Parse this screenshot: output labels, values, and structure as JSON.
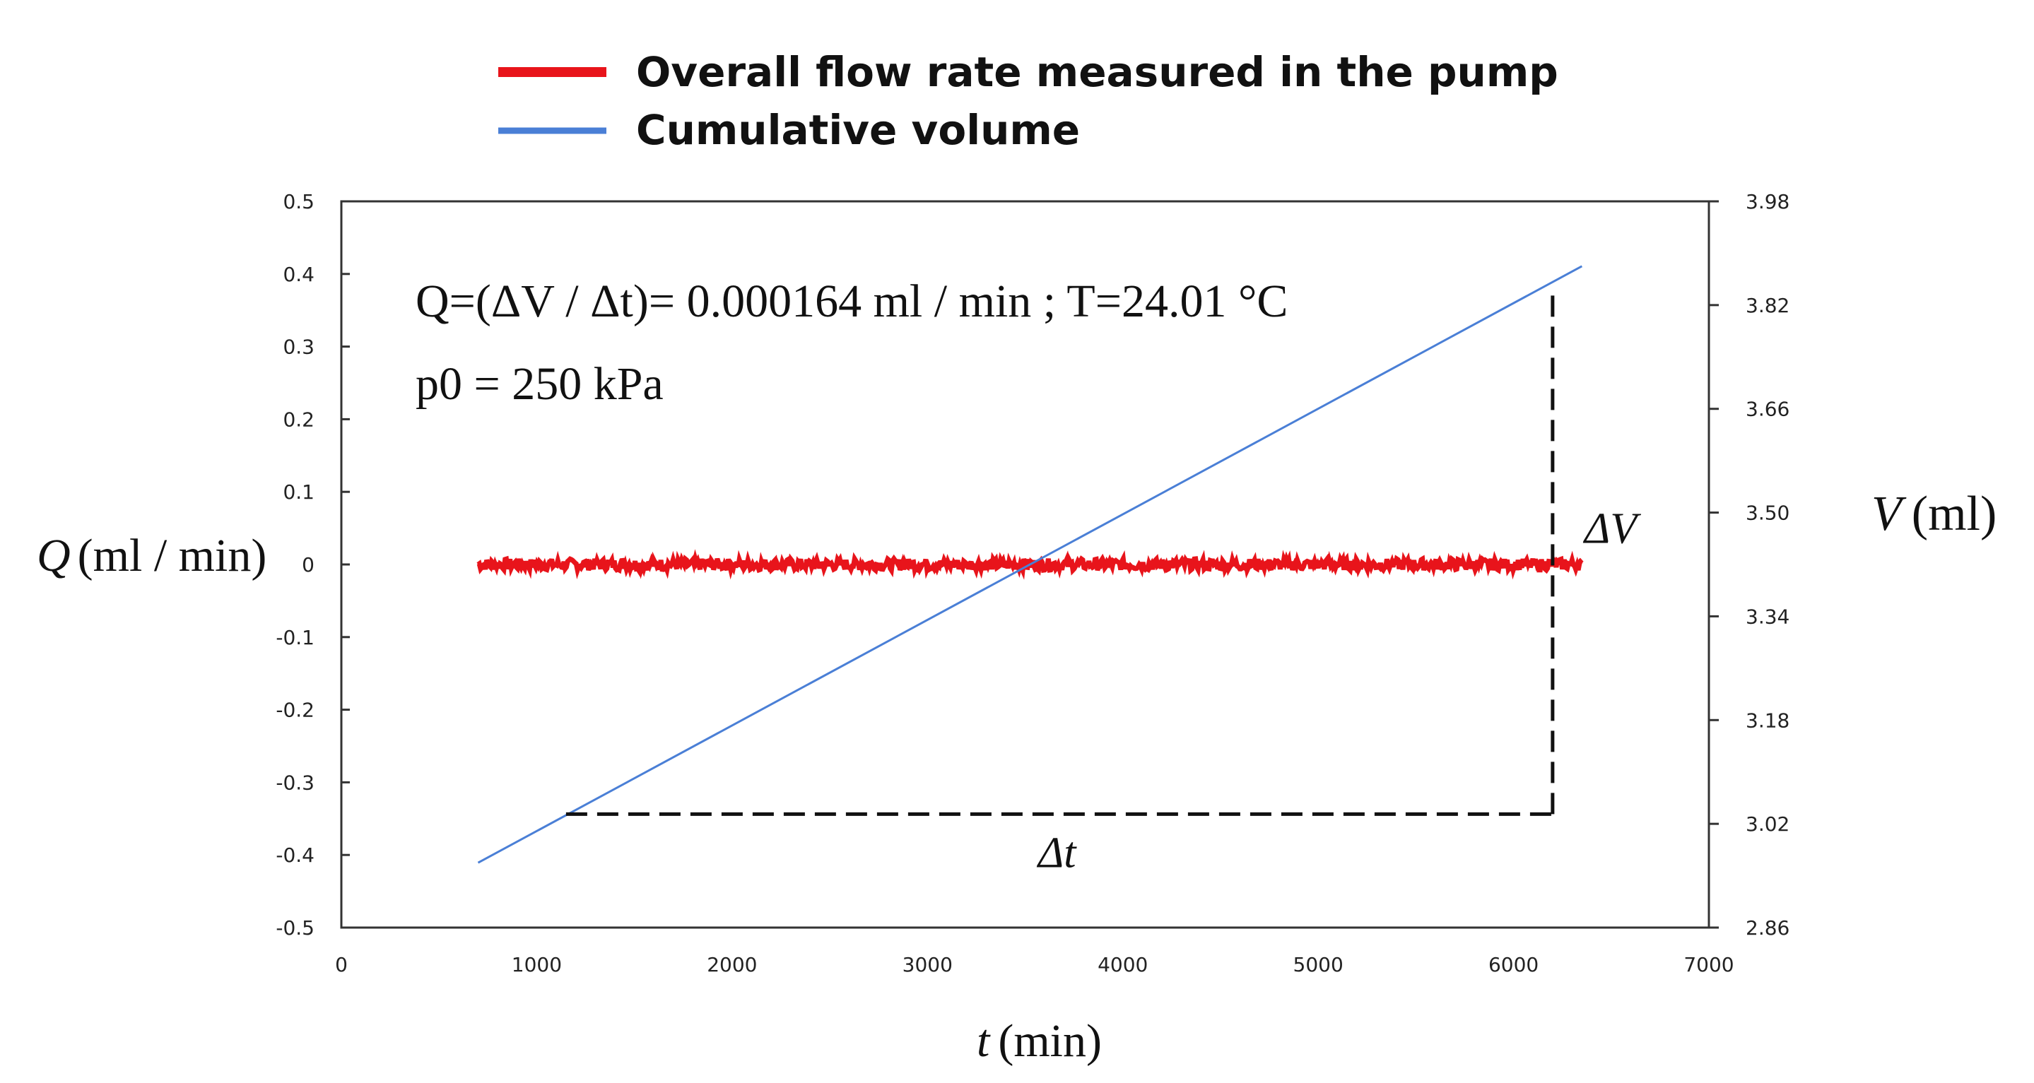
{
  "chart_data": {
    "type": "line",
    "title": "",
    "legend": {
      "placement": "top",
      "entries": [
        {
          "name": "Overall flow rate measured in the pump",
          "color": "#e8141b"
        },
        {
          "name": "Cumulative volume",
          "color": "#4a7fd6"
        }
      ]
    },
    "x_axis": {
      "label_var": "t",
      "label_unit": "(min)",
      "range": [
        0,
        7000
      ],
      "ticks": [
        "0",
        "1000",
        "2000",
        "3000",
        "4000",
        "5000",
        "6000",
        "7000"
      ]
    },
    "y_left": {
      "label_var": "Q",
      "label_unit": "(ml / min)",
      "range": [
        -0.5,
        0.5
      ],
      "ticks": [
        "0.5",
        "0.4",
        "0.3",
        "0.2",
        "0.1",
        "0",
        "-0.1",
        "-0.2",
        "-0.3",
        "-0.4",
        "-0.5"
      ]
    },
    "y_right": {
      "label_var": "V",
      "label_unit": "(ml)",
      "range": [
        2.86,
        3.98
      ],
      "ticks": [
        "3.98",
        "3.82",
        "3.66",
        "3.50",
        "3.34",
        "3.18",
        "3.02",
        "2.86"
      ]
    },
    "series": [
      {
        "name": "Overall flow rate measured in the pump",
        "axis": "left",
        "color": "#e8141b",
        "x": [
          700,
          6350
        ],
        "y": [
          0.0,
          0.0
        ],
        "noise_amplitude": 0.008
      },
      {
        "name": "Cumulative volume",
        "axis": "right",
        "color": "#4a7fd6",
        "x": [
          700,
          6350
        ],
        "y": [
          2.96,
          3.88
        ]
      }
    ],
    "construction": {
      "t_start": 1150,
      "t_end": 6200,
      "v_low": 3.035,
      "v_high": 3.85,
      "delta_t_label": "Δt",
      "delta_v_label": "ΔV"
    },
    "annotations": {
      "line1": "Q=(ΔV / Δt)= 0.000164  ml / min   ;   T=24.01 °C",
      "line2": "p0 = 250 kPa"
    }
  }
}
